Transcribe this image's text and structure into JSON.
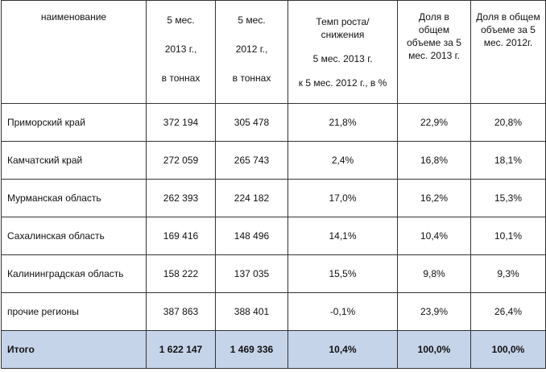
{
  "table": {
    "headers": {
      "name": "наименование",
      "col2013": [
        "5 мес.",
        "2013 г.,",
        "в тоннах"
      ],
      "col2012": [
        "5 мес.",
        "2012 г.,",
        "в тоннах"
      ],
      "growth": [
        "Темп роста/",
        "снижения",
        "5 мес. 2013 г.",
        "к 5 мес. 2012 г., в %"
      ],
      "share2013": [
        "Доля в",
        "общем",
        "объеме за 5",
        "мес. 2013 г."
      ],
      "share2012": [
        "Доля в общем",
        "объеме за 5",
        "мес. 2012г."
      ]
    },
    "rows": [
      {
        "name": "Приморский край",
        "v2013": "372 194",
        "v2012": "305 478",
        "growth": "21,8%",
        "share2013": "22,9%",
        "share2012": "20,8%"
      },
      {
        "name": "Камчатский край",
        "v2013": "272 059",
        "v2012": "265 743",
        "growth": "2,4%",
        "share2013": "16,8%",
        "share2012": "18,1%"
      },
      {
        "name": "Мурманская область",
        "v2013": "262 393",
        "v2012": "224 182",
        "growth": "17,0%",
        "share2013": "16,2%",
        "share2012": "15,3%"
      },
      {
        "name": "Сахалинская область",
        "v2013": "169 416",
        "v2012": "148 496",
        "growth": "14,1%",
        "share2013": "10,4%",
        "share2012": "10,1%"
      },
      {
        "name": "Калининградская область",
        "v2013": "158 222",
        "v2012": "137 035",
        "growth": "15,5%",
        "share2013": "9,8%",
        "share2012": "9,3%"
      },
      {
        "name": "прочие регионы",
        "v2013": "387 863",
        "v2012": "388 401",
        "growth": "-0,1%",
        "share2013": "23,9%",
        "share2012": "26,4%"
      }
    ],
    "total": {
      "name": "Итого",
      "v2013": "1 622 147",
      "v2012": "1 469 336",
      "growth": "10,4%",
      "share2013": "100,0%",
      "share2012": "100,0%"
    },
    "colors": {
      "total_bg": "#c6d4ea",
      "border": "#333333"
    }
  }
}
